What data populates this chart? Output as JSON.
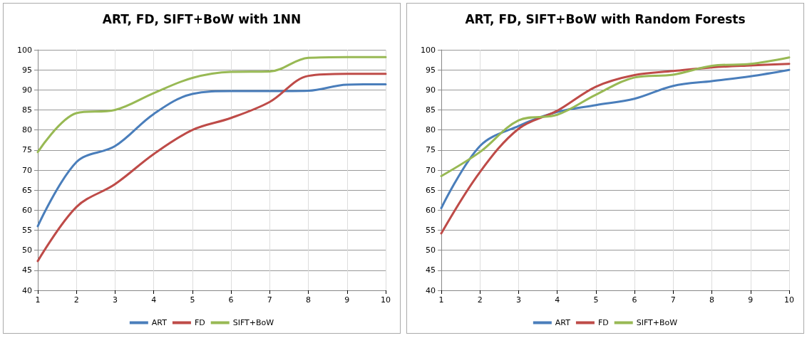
{
  "chart_data": [
    {
      "type": "line",
      "title": "ART, FD, SIFT+BoW with 1NN",
      "x": [
        1,
        2,
        3,
        4,
        5,
        6,
        7,
        8,
        9,
        10
      ],
      "xlim": [
        1,
        10
      ],
      "xticks": [
        1,
        2,
        3,
        4,
        5,
        6,
        7,
        8,
        9,
        10
      ],
      "ylim": [
        40,
        100
      ],
      "yticks": [
        40,
        45,
        50,
        55,
        60,
        65,
        70,
        75,
        80,
        85,
        90,
        95,
        100
      ],
      "grid": true,
      "legend": "bottom",
      "marker": "none",
      "line_style": "solid",
      "series": [
        {
          "name": "ART",
          "color": "#4a7ebb",
          "values": [
            56,
            72,
            76,
            84,
            89,
            89.7,
            89.7,
            89.8,
            91.3,
            91.4
          ]
        },
        {
          "name": "FD",
          "color": "#be4b48",
          "values": [
            47.3,
            60.8,
            66.5,
            74,
            80,
            83,
            87,
            93.5,
            94,
            94
          ]
        },
        {
          "name": "SIFT+BoW",
          "color": "#98b954",
          "values": [
            74.5,
            84.2,
            85,
            89.2,
            93,
            94.5,
            94.6,
            98,
            98.2,
            98.2
          ]
        }
      ]
    },
    {
      "type": "line",
      "title": "ART, FD, SIFT+BoW with Random Forests",
      "x": [
        1,
        2,
        3,
        4,
        5,
        6,
        7,
        8,
        9,
        10
      ],
      "xlim": [
        1,
        10
      ],
      "xticks": [
        1,
        2,
        3,
        4,
        5,
        6,
        7,
        8,
        9,
        10
      ],
      "ylim": [
        40,
        100
      ],
      "yticks": [
        40,
        45,
        50,
        55,
        60,
        65,
        70,
        75,
        80,
        85,
        90,
        95,
        100
      ],
      "grid": true,
      "legend": "bottom",
      "marker": "none",
      "line_style": "solid",
      "series": [
        {
          "name": "ART",
          "color": "#4a7ebb",
          "values": [
            60.5,
            76,
            81,
            84.5,
            86.2,
            87.8,
            91,
            92.2,
            93.4,
            95
          ]
        },
        {
          "name": "FD",
          "color": "#be4b48",
          "values": [
            54.2,
            69.5,
            80.3,
            84.8,
            90.8,
            93.7,
            94.7,
            95.6,
            96.1,
            96.5
          ]
        },
        {
          "name": "SIFT+BoW",
          "color": "#98b954",
          "values": [
            68.5,
            74.5,
            82.4,
            83.8,
            88.8,
            93.1,
            93.8,
            96,
            96.5,
            98.1
          ]
        }
      ]
    }
  ]
}
